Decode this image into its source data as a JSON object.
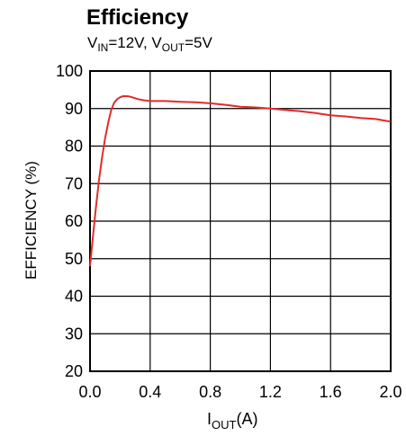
{
  "chart_data": {
    "type": "line",
    "title": "Efficiency",
    "subtitle": {
      "v_symbol": "V",
      "v_in_sub": "IN",
      "v_in_value": "=12V, ",
      "v_out_sub": "OUT",
      "v_out_value": "=5V"
    },
    "xlabel": {
      "symbol": "I",
      "sub": "OUT",
      "unit": "(A)"
    },
    "ylabel": "EFFICIENCY (%)",
    "xlim": [
      0,
      2.0
    ],
    "ylim": [
      20,
      100
    ],
    "x_ticks": [
      "0.0",
      "0.4",
      "0.8",
      "1.2",
      "1.6",
      "2.0"
    ],
    "y_ticks": [
      "20",
      "30",
      "40",
      "50",
      "60",
      "70",
      "80",
      "90",
      "100"
    ],
    "grid": true,
    "line_color": "#e32b2b",
    "series": [
      {
        "x": [
          0.0,
          0.02,
          0.04,
          0.06,
          0.08,
          0.1,
          0.12,
          0.14,
          0.16,
          0.18,
          0.2,
          0.22,
          0.25,
          0.28,
          0.32,
          0.36,
          0.4,
          0.5,
          0.6,
          0.7,
          0.8,
          0.9,
          1.0,
          1.1,
          1.2,
          1.3,
          1.4,
          1.5,
          1.6,
          1.7,
          1.8,
          1.9,
          2.0
        ],
        "y": [
          48,
          56,
          64,
          71,
          77,
          82,
          86,
          89.5,
          91.5,
          92.5,
          93,
          93.3,
          93.3,
          93,
          92.5,
          92.2,
          92,
          92,
          91.8,
          91.7,
          91.4,
          91,
          90.5,
          90.3,
          90,
          89.6,
          89.3,
          88.8,
          88.2,
          87.9,
          87.5,
          87.2,
          86.5
        ]
      }
    ]
  }
}
